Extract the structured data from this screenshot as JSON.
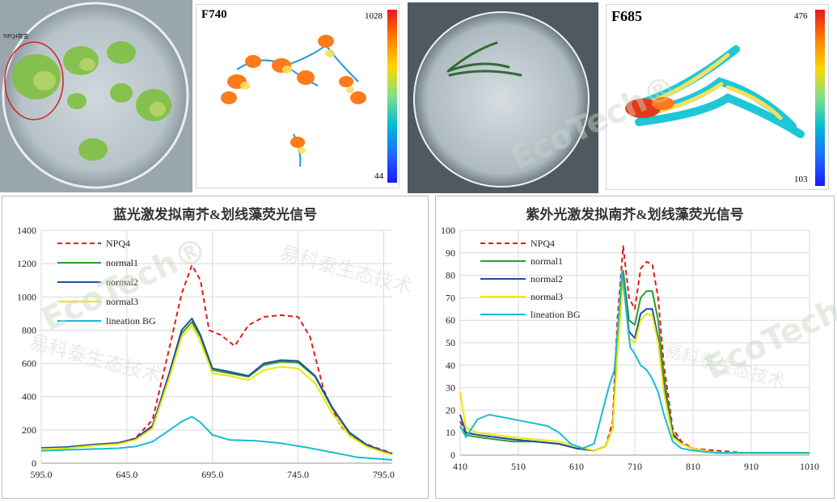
{
  "photo1": {
    "annotation": "NPQ4突变"
  },
  "heatmap1": {
    "label": "F740",
    "cbar_max": "1028",
    "cbar_min": "44"
  },
  "heatmap2": {
    "label": "F685",
    "cbar_max": "476",
    "cbar_min": "103"
  },
  "watermark": {
    "cn": "易科泰生态技术",
    "en": "EcoTech®"
  },
  "chart_data": [
    {
      "type": "line",
      "title": "蓝光激发拟南芥&划线藻荧光信号",
      "xlim": [
        595,
        800
      ],
      "ylim": [
        0,
        1400
      ],
      "xticks": [
        "595.0",
        "645.0",
        "695.0",
        "745.0",
        "795.0"
      ],
      "xtick_values": [
        595,
        645,
        695,
        745,
        795
      ],
      "yticks": [
        "0",
        "200",
        "400",
        "600",
        "800",
        "1000",
        "1200",
        "1400"
      ],
      "ytick_values": [
        0,
        200,
        400,
        600,
        800,
        1000,
        1200,
        1400
      ],
      "legend": [
        "NPQ4",
        "normal1",
        "normal2",
        "normal3",
        "lineation BG"
      ],
      "series": [
        {
          "name": "NPQ4",
          "color": "#e41a1c",
          "dash": true,
          "x": [
            595,
            610,
            625,
            640,
            650,
            660,
            670,
            677,
            683,
            688,
            693,
            700,
            708,
            716,
            725,
            735,
            745,
            752,
            760,
            770,
            780,
            790,
            800
          ],
          "y": [
            90,
            95,
            110,
            120,
            150,
            260,
            700,
            1020,
            1190,
            1100,
            800,
            770,
            705,
            830,
            880,
            890,
            880,
            760,
            440,
            220,
            135,
            95,
            60
          ]
        },
        {
          "name": "normal1",
          "color": "#2ca02c",
          "dash": false,
          "x": [
            595,
            610,
            625,
            640,
            650,
            660,
            670,
            677,
            683,
            688,
            695,
            705,
            716,
            725,
            735,
            745,
            755,
            765,
            775,
            785,
            795,
            800
          ],
          "y": [
            90,
            95,
            110,
            120,
            145,
            220,
            540,
            780,
            850,
            760,
            560,
            540,
            520,
            590,
            610,
            605,
            520,
            330,
            180,
            110,
            70,
            55
          ]
        },
        {
          "name": "normal2",
          "color": "#1f4fa0",
          "dash": false,
          "x": [
            595,
            610,
            625,
            640,
            650,
            660,
            670,
            677,
            683,
            688,
            695,
            705,
            716,
            725,
            735,
            745,
            755,
            765,
            775,
            785,
            795,
            800
          ],
          "y": [
            92,
            97,
            112,
            122,
            148,
            225,
            550,
            800,
            870,
            770,
            570,
            550,
            525,
            600,
            620,
            615,
            525,
            335,
            185,
            112,
            72,
            57
          ]
        },
        {
          "name": "normal3",
          "color": "#f2e600",
          "dash": false,
          "x": [
            595,
            610,
            625,
            640,
            650,
            660,
            670,
            677,
            683,
            688,
            695,
            705,
            716,
            725,
            735,
            745,
            755,
            765,
            775,
            785,
            795,
            800
          ],
          "y": [
            85,
            90,
            105,
            115,
            140,
            210,
            520,
            760,
            830,
            730,
            540,
            525,
            500,
            560,
            580,
            570,
            480,
            300,
            165,
            100,
            65,
            50
          ]
        },
        {
          "name": "lineation BG",
          "color": "#17becf",
          "dash": false,
          "x": [
            595,
            610,
            625,
            640,
            650,
            660,
            670,
            677,
            683,
            688,
            695,
            705,
            720,
            735,
            750,
            765,
            780,
            800
          ],
          "y": [
            75,
            80,
            85,
            90,
            100,
            130,
            200,
            250,
            280,
            245,
            170,
            140,
            135,
            120,
            95,
            65,
            35,
            20
          ]
        }
      ]
    },
    {
      "type": "line",
      "title": "紫外光激发拟南芥&划线藻荧光信号",
      "xlim": [
        410,
        1010
      ],
      "ylim": [
        0,
        100
      ],
      "xticks": [
        "410",
        "510",
        "610",
        "710",
        "810",
        "910",
        "1010"
      ],
      "xtick_values": [
        410,
        510,
        610,
        710,
        810,
        910,
        1010
      ],
      "yticks": [
        "0",
        "10",
        "20",
        "30",
        "40",
        "50",
        "60",
        "70",
        "80",
        "90",
        "100"
      ],
      "ytick_values": [
        0,
        10,
        20,
        30,
        40,
        50,
        60,
        70,
        80,
        90,
        100
      ],
      "legend": [
        "NPQ4",
        "normal1",
        "normal2",
        "normal3",
        "lineation BG"
      ],
      "series": [
        {
          "name": "NPQ4",
          "color": "#e41a1c",
          "dash": true,
          "x": [
            410,
            420,
            440,
            470,
            500,
            540,
            580,
            610,
            640,
            660,
            672,
            680,
            690,
            700,
            710,
            720,
            730,
            740,
            750,
            760,
            775,
            790,
            810,
            850,
            900,
            1010
          ],
          "y": [
            15,
            10,
            9,
            8,
            7,
            6,
            5,
            3,
            2,
            4,
            15,
            60,
            93,
            70,
            65,
            83,
            86,
            85,
            70,
            40,
            12,
            6,
            3,
            2,
            1,
            1
          ]
        },
        {
          "name": "normal1",
          "color": "#2ca02c",
          "dash": false,
          "x": [
            410,
            420,
            440,
            470,
            500,
            540,
            580,
            610,
            640,
            660,
            672,
            680,
            690,
            700,
            710,
            720,
            730,
            740,
            750,
            760,
            775,
            790,
            810,
            850,
            900,
            1010
          ],
          "y": [
            13,
            9,
            8,
            7,
            6,
            6,
            5,
            3,
            2,
            4,
            12,
            50,
            82,
            60,
            58,
            70,
            73,
            73,
            60,
            35,
            10,
            5,
            3,
            1,
            1,
            1
          ]
        },
        {
          "name": "normal2",
          "color": "#1f4fa0",
          "dash": false,
          "x": [
            410,
            420,
            440,
            470,
            500,
            540,
            580,
            610,
            640,
            660,
            672,
            680,
            690,
            700,
            710,
            720,
            730,
            740,
            750,
            760,
            775,
            790,
            810,
            850,
            900,
            1010
          ],
          "y": [
            18,
            10,
            9,
            8,
            7,
            6,
            5,
            3,
            2,
            4,
            12,
            48,
            80,
            55,
            52,
            63,
            65,
            65,
            52,
            30,
            9,
            5,
            3,
            1,
            1,
            1
          ]
        },
        {
          "name": "normal3",
          "color": "#f2e600",
          "dash": false,
          "x": [
            410,
            420,
            440,
            470,
            500,
            540,
            580,
            610,
            640,
            660,
            672,
            680,
            690,
            700,
            710,
            720,
            730,
            740,
            750,
            760,
            775,
            790,
            810,
            850,
            900,
            1010
          ],
          "y": [
            28,
            12,
            10,
            9,
            8,
            7,
            6,
            4,
            2,
            4,
            12,
            45,
            78,
            52,
            50,
            60,
            63,
            62,
            50,
            28,
            8,
            5,
            3,
            1,
            1,
            1
          ]
        },
        {
          "name": "lineation BG",
          "color": "#17becf",
          "dash": false,
          "x": [
            410,
            420,
            440,
            460,
            480,
            500,
            520,
            540,
            560,
            580,
            600,
            620,
            640,
            655,
            665,
            675,
            682,
            688,
            695,
            702,
            710,
            720,
            730,
            740,
            750,
            760,
            775,
            790,
            810,
            850,
            1010
          ],
          "y": [
            13,
            8,
            16,
            18,
            17,
            16,
            15,
            14,
            13,
            10,
            5,
            3,
            5,
            20,
            30,
            38,
            60,
            82,
            65,
            48,
            45,
            40,
            38,
            34,
            28,
            18,
            6,
            3,
            2,
            1,
            1
          ]
        }
      ]
    }
  ]
}
